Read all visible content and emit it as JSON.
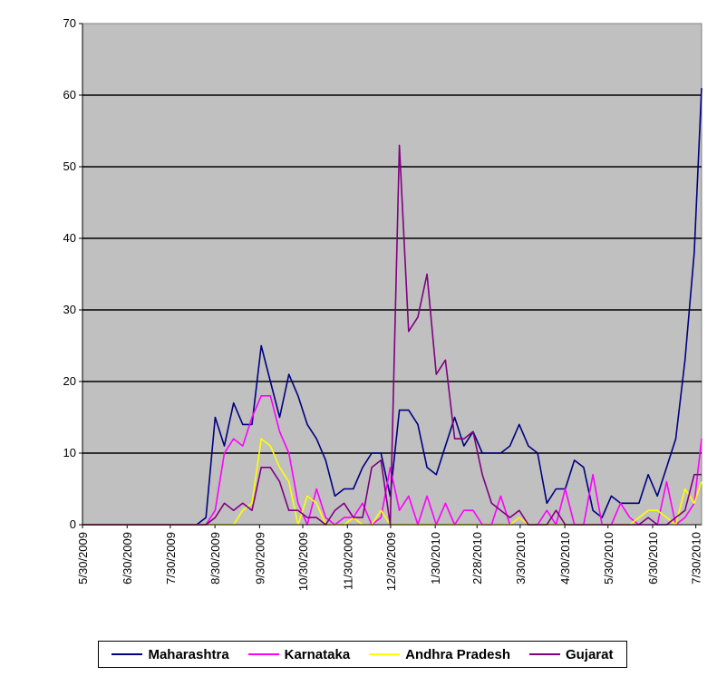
{
  "chart_data": {
    "type": "line",
    "title": "",
    "xlabel": "",
    "ylabel": "",
    "ylim": [
      0,
      70
    ],
    "yticks": [
      "0",
      "10",
      "20",
      "30",
      "40",
      "50",
      "60",
      "70"
    ],
    "xticks": [
      "5/30/2009",
      "6/30/2009",
      "7/30/2009",
      "8/30/2009",
      "9/30/2009",
      "10/30/2009",
      "11/30/2009",
      "12/30/2009",
      "1/30/2010",
      "2/28/2010",
      "3/30/2010",
      "4/30/2010",
      "5/30/2010",
      "6/30/2010",
      "7/30/2010"
    ],
    "grid": "horizontal",
    "legend_position": "bottom",
    "series": [
      {
        "name": "Maharashtra",
        "color": "#000080",
        "points": [
          [
            0,
            0
          ],
          [
            56,
            0
          ],
          [
            62,
            0
          ],
          [
            67,
            1
          ],
          [
            72,
            15
          ],
          [
            77,
            11
          ],
          [
            82,
            17
          ],
          [
            87,
            14
          ],
          [
            92,
            14
          ],
          [
            97,
            25
          ],
          [
            102,
            20
          ],
          [
            107,
            15
          ],
          [
            112,
            21
          ],
          [
            117,
            18
          ],
          [
            122,
            14
          ],
          [
            127,
            12
          ],
          [
            132,
            9
          ],
          [
            137,
            4
          ],
          [
            142,
            5
          ],
          [
            147,
            5
          ],
          [
            152,
            8
          ],
          [
            157,
            10
          ],
          [
            162,
            10
          ],
          [
            167,
            4
          ],
          [
            172,
            16
          ],
          [
            177,
            16
          ],
          [
            182,
            14
          ],
          [
            187,
            8
          ],
          [
            192,
            7
          ],
          [
            197,
            11
          ],
          [
            202,
            15
          ],
          [
            207,
            11
          ],
          [
            212,
            13
          ],
          [
            217,
            10
          ],
          [
            222,
            10
          ],
          [
            227,
            10
          ],
          [
            232,
            11
          ],
          [
            237,
            14
          ],
          [
            242,
            11
          ],
          [
            247,
            10
          ],
          [
            252,
            3
          ],
          [
            257,
            5
          ],
          [
            262,
            5
          ],
          [
            267,
            9
          ],
          [
            272,
            8
          ],
          [
            277,
            2
          ],
          [
            282,
            1
          ],
          [
            287,
            4
          ],
          [
            292,
            3
          ],
          [
            297,
            3
          ],
          [
            302,
            3
          ],
          [
            307,
            7
          ],
          [
            312,
            4
          ],
          [
            317,
            8
          ],
          [
            322,
            12
          ],
          [
            327,
            23
          ],
          [
            332,
            38
          ],
          [
            336,
            61
          ]
        ]
      },
      {
        "name": "Karnataka",
        "color": "#ff00ff",
        "points": [
          [
            0,
            0
          ],
          [
            62,
            0
          ],
          [
            67,
            0
          ],
          [
            72,
            2
          ],
          [
            77,
            10
          ],
          [
            82,
            12
          ],
          [
            87,
            11
          ],
          [
            92,
            15
          ],
          [
            97,
            18
          ],
          [
            102,
            18
          ],
          [
            107,
            13
          ],
          [
            112,
            10
          ],
          [
            117,
            3
          ],
          [
            122,
            0
          ],
          [
            127,
            5
          ],
          [
            132,
            1
          ],
          [
            137,
            0
          ],
          [
            142,
            1
          ],
          [
            147,
            1
          ],
          [
            152,
            3
          ],
          [
            157,
            0
          ],
          [
            162,
            1
          ],
          [
            167,
            8
          ],
          [
            172,
            2
          ],
          [
            177,
            4
          ],
          [
            182,
            0
          ],
          [
            187,
            4
          ],
          [
            192,
            0
          ],
          [
            197,
            3
          ],
          [
            202,
            0
          ],
          [
            207,
            2
          ],
          [
            212,
            2
          ],
          [
            217,
            0
          ],
          [
            222,
            0
          ],
          [
            227,
            4
          ],
          [
            232,
            0
          ],
          [
            237,
            1
          ],
          [
            242,
            0
          ],
          [
            247,
            0
          ],
          [
            252,
            2
          ],
          [
            257,
            0
          ],
          [
            262,
            5
          ],
          [
            267,
            0
          ],
          [
            272,
            0
          ],
          [
            277,
            7
          ],
          [
            282,
            0
          ],
          [
            287,
            0
          ],
          [
            292,
            3
          ],
          [
            297,
            1
          ],
          [
            302,
            0
          ],
          [
            307,
            0
          ],
          [
            312,
            0
          ],
          [
            317,
            6
          ],
          [
            322,
            0
          ],
          [
            327,
            1
          ],
          [
            332,
            3
          ],
          [
            336,
            12
          ]
        ]
      },
      {
        "name": "Andhra Pradesh",
        "color": "#ffff00",
        "points": [
          [
            0,
            0
          ],
          [
            62,
            0
          ],
          [
            67,
            0
          ],
          [
            72,
            0
          ],
          [
            77,
            0
          ],
          [
            82,
            0
          ],
          [
            87,
            2
          ],
          [
            92,
            3
          ],
          [
            97,
            12
          ],
          [
            102,
            11
          ],
          [
            107,
            8
          ],
          [
            112,
            6
          ],
          [
            117,
            0
          ],
          [
            122,
            4
          ],
          [
            127,
            3
          ],
          [
            132,
            0
          ],
          [
            137,
            0
          ],
          [
            142,
            0
          ],
          [
            147,
            1
          ],
          [
            152,
            0
          ],
          [
            157,
            0
          ],
          [
            162,
            2
          ],
          [
            167,
            0
          ],
          [
            172,
            0
          ],
          [
            177,
            0
          ],
          [
            182,
            0
          ],
          [
            187,
            0
          ],
          [
            192,
            0
          ],
          [
            197,
            0
          ],
          [
            202,
            0
          ],
          [
            207,
            0
          ],
          [
            212,
            0
          ],
          [
            217,
            0
          ],
          [
            222,
            0
          ],
          [
            227,
            0
          ],
          [
            232,
            0
          ],
          [
            237,
            1
          ],
          [
            242,
            0
          ],
          [
            247,
            0
          ],
          [
            252,
            0
          ],
          [
            257,
            0
          ],
          [
            262,
            0
          ],
          [
            267,
            0
          ],
          [
            272,
            0
          ],
          [
            277,
            0
          ],
          [
            282,
            0
          ],
          [
            287,
            0
          ],
          [
            292,
            0
          ],
          [
            297,
            0
          ],
          [
            302,
            1
          ],
          [
            307,
            2
          ],
          [
            312,
            2
          ],
          [
            317,
            1
          ],
          [
            322,
            0
          ],
          [
            327,
            5
          ],
          [
            332,
            3
          ],
          [
            336,
            6
          ]
        ]
      },
      {
        "name": "Gujarat",
        "color": "#800080",
        "points": [
          [
            0,
            0
          ],
          [
            62,
            0
          ],
          [
            67,
            0
          ],
          [
            72,
            1
          ],
          [
            77,
            3
          ],
          [
            82,
            2
          ],
          [
            87,
            3
          ],
          [
            92,
            2
          ],
          [
            97,
            8
          ],
          [
            102,
            8
          ],
          [
            107,
            6
          ],
          [
            112,
            2
          ],
          [
            117,
            2
          ],
          [
            122,
            1
          ],
          [
            127,
            1
          ],
          [
            132,
            0
          ],
          [
            137,
            2
          ],
          [
            142,
            3
          ],
          [
            147,
            1
          ],
          [
            152,
            1
          ],
          [
            157,
            8
          ],
          [
            162,
            9
          ],
          [
            167,
            0
          ],
          [
            172,
            53
          ],
          [
            177,
            27
          ],
          [
            182,
            29
          ],
          [
            187,
            35
          ],
          [
            192,
            21
          ],
          [
            197,
            23
          ],
          [
            202,
            12
          ],
          [
            207,
            12
          ],
          [
            212,
            13
          ],
          [
            217,
            7
          ],
          [
            222,
            3
          ],
          [
            227,
            2
          ],
          [
            232,
            1
          ],
          [
            237,
            2
          ],
          [
            242,
            0
          ],
          [
            247,
            0
          ],
          [
            252,
            0
          ],
          [
            257,
            2
          ],
          [
            262,
            0
          ],
          [
            267,
            0
          ],
          [
            272,
            0
          ],
          [
            277,
            0
          ],
          [
            282,
            0
          ],
          [
            287,
            0
          ],
          [
            292,
            0
          ],
          [
            297,
            0
          ],
          [
            302,
            0
          ],
          [
            307,
            1
          ],
          [
            312,
            0
          ],
          [
            317,
            0
          ],
          [
            322,
            1
          ],
          [
            327,
            2
          ],
          [
            332,
            7
          ],
          [
            336,
            7
          ]
        ]
      }
    ]
  }
}
